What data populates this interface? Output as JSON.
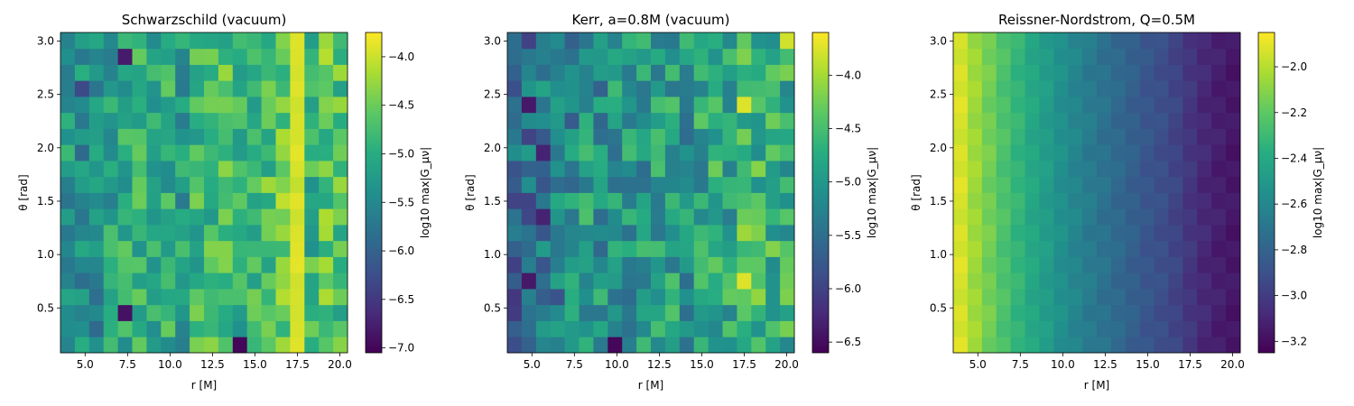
{
  "chart_data": [
    {
      "type": "heatmap",
      "title": "Schwarzschild (vacuum)",
      "xlabel": "r [M]",
      "ylabel": "θ [rad]",
      "xlim": [
        3.55,
        20.45
      ],
      "ylim": [
        0.08,
        3.08
      ],
      "x_ticks": [
        5.0,
        7.5,
        10.0,
        12.5,
        15.0,
        17.5,
        20.0
      ],
      "x_tick_labels": [
        "5.0",
        "7.5",
        "10.0",
        "12.5",
        "15.0",
        "17.5",
        "20.0"
      ],
      "y_ticks": [
        0.5,
        1.0,
        1.5,
        2.0,
        2.5,
        3.0
      ],
      "y_tick_labels": [
        "0.5",
        "1.0",
        "1.5",
        "2.0",
        "2.5",
        "3.0"
      ],
      "colorbar_label": "log10 max|G_μν|",
      "colorbar_range": [
        -7.05,
        -3.75
      ],
      "colorbar_ticks": [
        -7.0,
        -6.5,
        -6.0,
        -5.5,
        -5.0,
        -4.5,
        -4.0
      ],
      "colorbar_tick_labels": [
        "−7.0",
        "−6.5",
        "−6.0",
        "−5.5",
        "−5.0",
        "−4.5",
        "−4.0"
      ],
      "colormap": "viridis",
      "grid": false,
      "n_cols": 20,
      "n_rows": 20,
      "x_values_note": "columns evenly spaced from r=4 to r=20",
      "y_values_note": "rows evenly spaced from θ=0.15 to θ=3.0"
    },
    {
      "type": "heatmap",
      "title": "Kerr, a=0.8M (vacuum)",
      "xlabel": "r [M]",
      "ylabel": "θ [rad]",
      "xlim": [
        3.55,
        20.45
      ],
      "ylim": [
        0.08,
        3.08
      ],
      "x_ticks": [
        5.0,
        7.5,
        10.0,
        12.5,
        15.0,
        17.5,
        20.0
      ],
      "x_tick_labels": [
        "5.0",
        "7.5",
        "10.0",
        "12.5",
        "15.0",
        "17.5",
        "20.0"
      ],
      "y_ticks": [
        0.5,
        1.0,
        1.5,
        2.0,
        2.5,
        3.0
      ],
      "y_tick_labels": [
        "0.5",
        "1.0",
        "1.5",
        "2.0",
        "2.5",
        "3.0"
      ],
      "colorbar_label": "log10 max|G_μν|",
      "colorbar_range": [
        -6.6,
        -3.6
      ],
      "colorbar_ticks": [
        -6.5,
        -6.0,
        -5.5,
        -5.0,
        -4.5,
        -4.0
      ],
      "colorbar_tick_labels": [
        "−6.5",
        "−6.0",
        "−5.5",
        "−5.0",
        "−4.5",
        "−4.0"
      ],
      "colormap": "viridis",
      "grid": false,
      "n_cols": 20,
      "n_rows": 20
    },
    {
      "type": "heatmap",
      "title": "Reissner-Nordstrom, Q=0.5M",
      "xlabel": "r [M]",
      "ylabel": "θ [rad]",
      "xlim": [
        3.55,
        20.45
      ],
      "ylim": [
        0.08,
        3.08
      ],
      "x_ticks": [
        5.0,
        7.5,
        10.0,
        12.5,
        15.0,
        17.5,
        20.0
      ],
      "x_tick_labels": [
        "5.0",
        "7.5",
        "10.0",
        "12.5",
        "15.0",
        "17.5",
        "20.0"
      ],
      "y_ticks": [
        0.5,
        1.0,
        1.5,
        2.0,
        2.5,
        3.0
      ],
      "y_tick_labels": [
        "0.5",
        "1.0",
        "1.5",
        "2.0",
        "2.5",
        "3.0"
      ],
      "colorbar_label": "log10 max|G_μν|",
      "colorbar_range": [
        -3.25,
        -1.85
      ],
      "colorbar_ticks": [
        -3.2,
        -3.0,
        -2.8,
        -2.6,
        -2.4,
        -2.2,
        -2.0
      ],
      "colorbar_tick_labels": [
        "−3.2",
        "−3.0",
        "−2.8",
        "−2.6",
        "−2.4",
        "−2.2",
        "−2.0"
      ],
      "colormap": "viridis",
      "grid": false,
      "n_cols": 20,
      "n_rows": 20,
      "column_values": [
        -1.9,
        -2.02,
        -2.12,
        -2.22,
        -2.3,
        -2.38,
        -2.45,
        -2.52,
        -2.58,
        -2.64,
        -2.69,
        -2.74,
        -2.79,
        -2.84,
        -2.88,
        -2.93,
        -3.0,
        -3.06,
        -3.1,
        -3.13
      ]
    }
  ]
}
